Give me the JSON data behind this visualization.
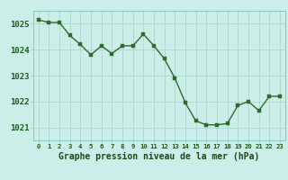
{
  "x": [
    0,
    1,
    2,
    3,
    4,
    5,
    6,
    7,
    8,
    9,
    10,
    11,
    12,
    13,
    14,
    15,
    16,
    17,
    18,
    19,
    20,
    21,
    22,
    23
  ],
  "y": [
    1025.15,
    1025.05,
    1025.05,
    1024.55,
    1024.2,
    1023.8,
    1024.15,
    1023.85,
    1024.15,
    1024.15,
    1024.6,
    1024.15,
    1023.65,
    1022.9,
    1021.95,
    1021.25,
    1021.1,
    1021.1,
    1021.15,
    1021.85,
    1022.0,
    1021.65,
    1022.2,
    1022.2
  ],
  "line_color": "#2d6a2d",
  "marker_color": "#2d6a2d",
  "bg_color": "#cceee8",
  "grid_color": "#aad8d0",
  "axis_label_color": "#1a4a1a",
  "tick_label_color": "#1a5a1a",
  "xlabel": "Graphe pression niveau de la mer (hPa)",
  "ylim_min": 1020.5,
  "ylim_max": 1025.5,
  "yticks": [
    1021,
    1022,
    1023,
    1024,
    1025
  ],
  "xticks": [
    0,
    1,
    2,
    3,
    4,
    5,
    6,
    7,
    8,
    9,
    10,
    11,
    12,
    13,
    14,
    15,
    16,
    17,
    18,
    19,
    20,
    21,
    22,
    23
  ],
  "marker_size": 2.5,
  "line_width": 1.0,
  "xlabel_fontsize": 7.0,
  "ytick_fontsize": 6.5,
  "xtick_fontsize": 5.2
}
